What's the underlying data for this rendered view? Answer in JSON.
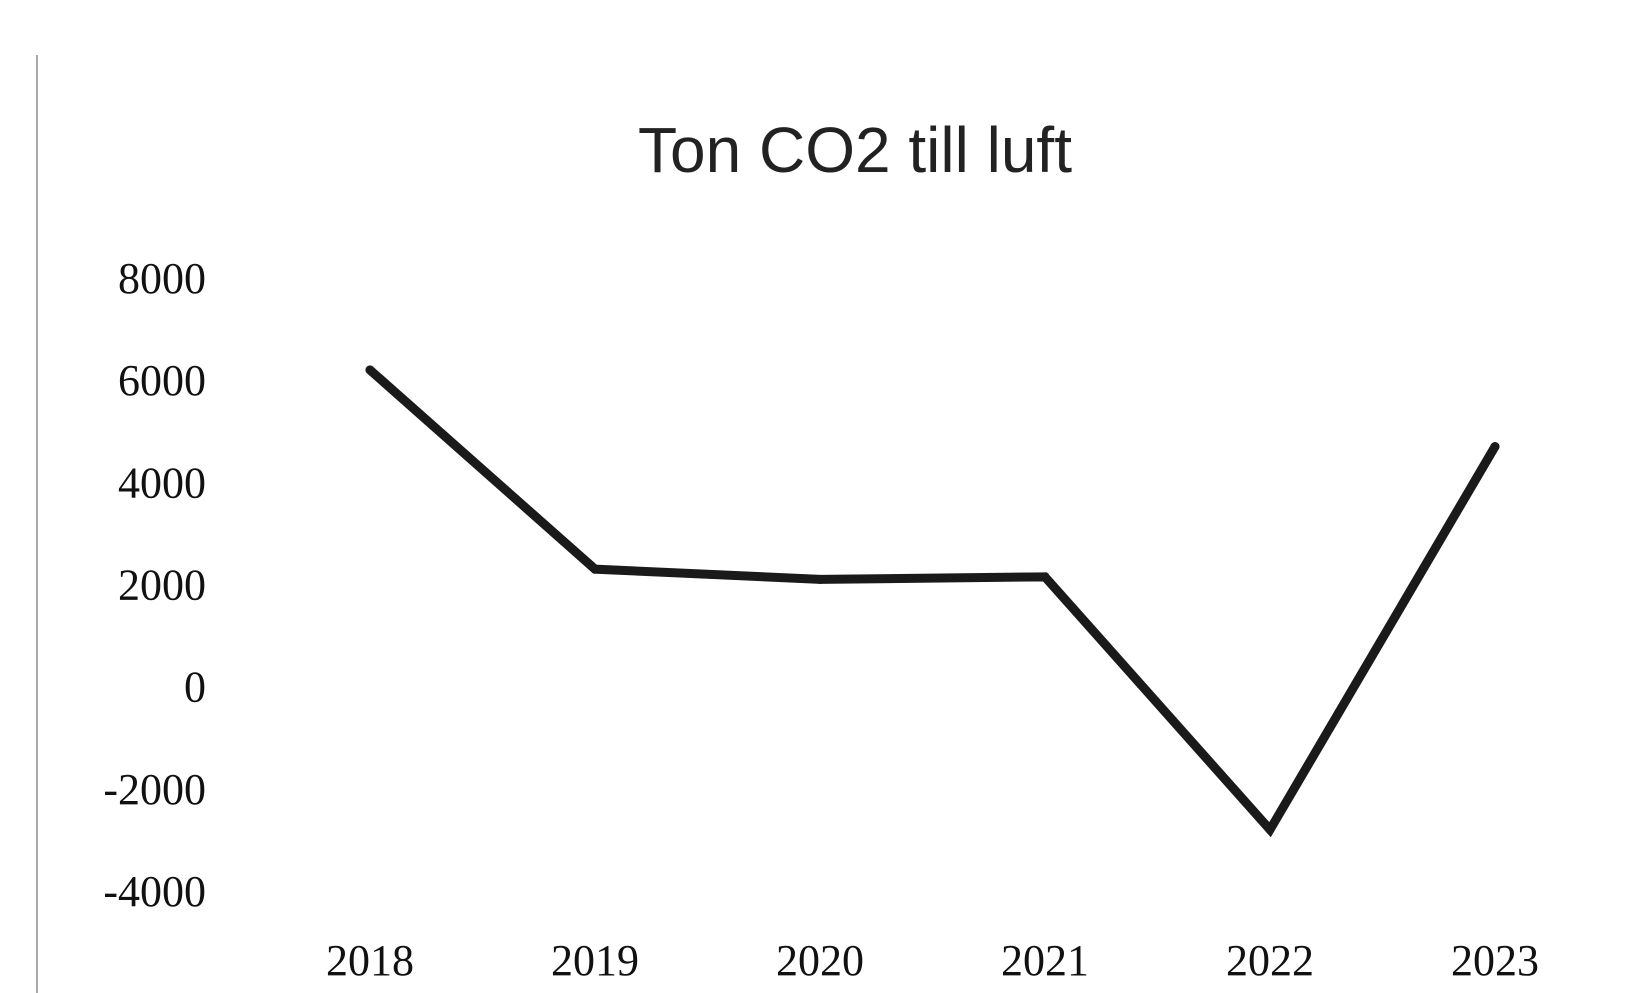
{
  "chart_data": {
    "type": "line",
    "title": "Ton CO2 till luft",
    "xlabel": "",
    "ylabel": "",
    "categories": [
      "2018",
      "2019",
      "2020",
      "2021",
      "2022",
      "2023"
    ],
    "series": [
      {
        "values": [
          6200,
          2300,
          2100,
          2150,
          -2800,
          4700
        ]
      }
    ],
    "ylim": [
      -4000,
      8000
    ],
    "yticks": [
      "8000",
      "6000",
      "4000",
      "2000",
      "0",
      "-2000",
      "-4000"
    ],
    "grid": false,
    "legend": "none",
    "line_color": "#1a1a1a"
  }
}
